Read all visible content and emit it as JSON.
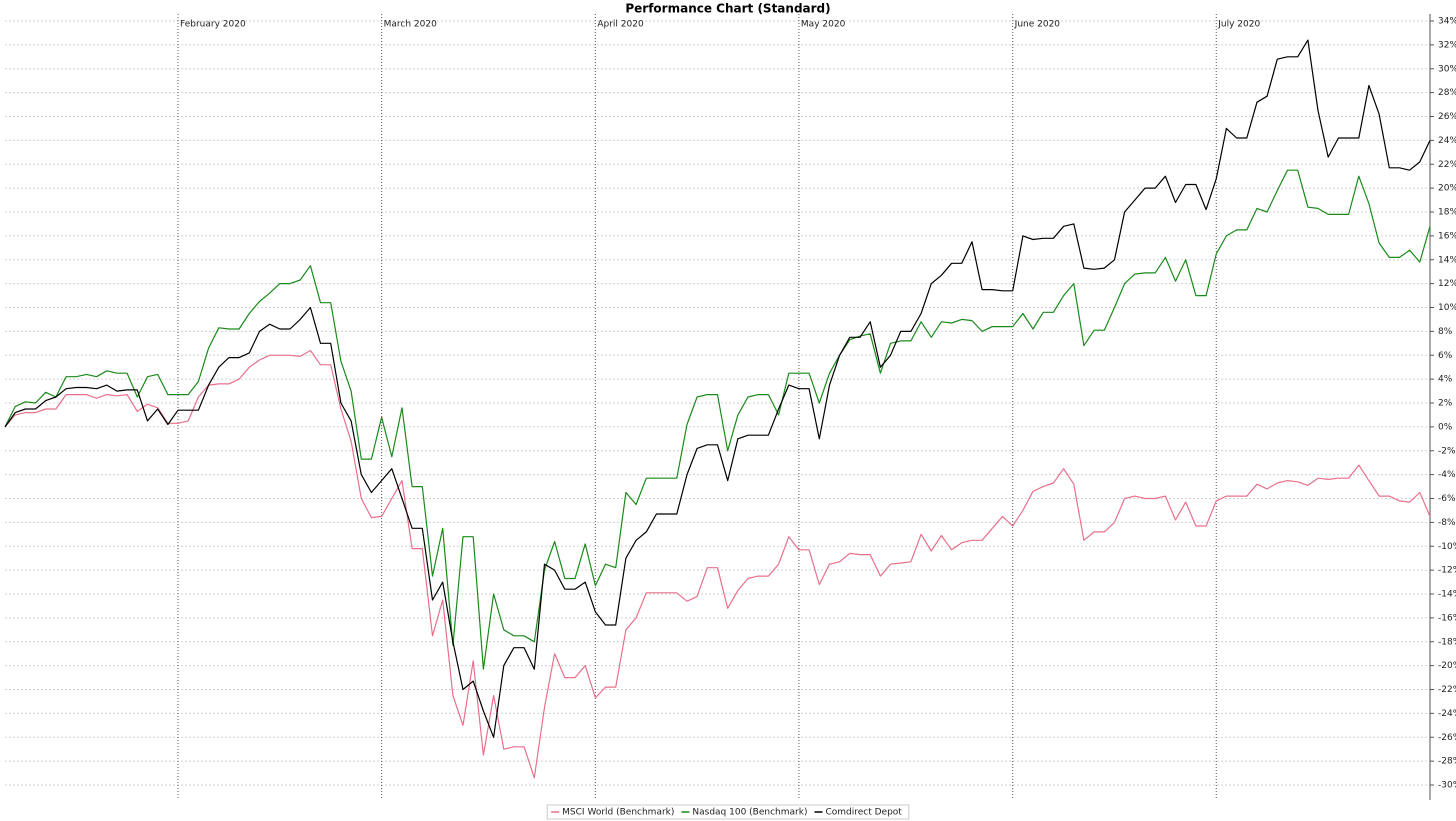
{
  "chart_data": {
    "type": "line",
    "title": "Performance Chart (Standard)",
    "categories": [
      null,
      null,
      null,
      null,
      null,
      null,
      null,
      null,
      null,
      null,
      null,
      null,
      null,
      null,
      null,
      null,
      null,
      "February 2020",
      null,
      null,
      null,
      null,
      null,
      null,
      null,
      null,
      null,
      null,
      null,
      null,
      null,
      null,
      null,
      null,
      null,
      null,
      null,
      "March 2020",
      null,
      null,
      null,
      null,
      null,
      null,
      null,
      null,
      null,
      null,
      null,
      null,
      null,
      null,
      null,
      null,
      null,
      null,
      null,
      null,
      "April 2020",
      null,
      null,
      null,
      null,
      null,
      null,
      null,
      null,
      null,
      null,
      null,
      null,
      null,
      null,
      null,
      null,
      null,
      null,
      null,
      "May 2020",
      null,
      null,
      null,
      null,
      null,
      null,
      null,
      null,
      null,
      null,
      null,
      null,
      null,
      null,
      null,
      null,
      null,
      null,
      null,
      null,
      "June 2020",
      null,
      null,
      null,
      null,
      null,
      null,
      null,
      null,
      null,
      null,
      null,
      null,
      null,
      null,
      null,
      null,
      null,
      null,
      null,
      "July 2020",
      null,
      null,
      null,
      null,
      null,
      null,
      null,
      null,
      null,
      null,
      null,
      null,
      null,
      null,
      null,
      null,
      null,
      null,
      null,
      null,
      null
    ],
    "series": [
      {
        "name": "MSCI World (Benchmark)",
        "color": "#e8708c",
        "values": [
          0,
          1.0,
          1.2,
          1.2,
          1.5,
          1.5,
          2.7,
          2.7,
          2.7,
          2.4,
          2.7,
          2.6,
          2.7,
          1.3,
          1.9,
          1.6,
          0.3,
          0.3,
          0.5,
          2.5,
          3.5,
          3.6,
          3.6,
          4.0,
          5.0,
          5.6,
          6.0,
          6.0,
          6.0,
          5.9,
          6.4,
          5.2,
          5.2,
          1.5,
          -1.2,
          -6,
          -7.6,
          -7.5,
          -6,
          -4.5,
          -10.2,
          -10.2,
          -17.5,
          -14.5,
          -22.5,
          -25,
          -19.6,
          -27.5,
          -22.5,
          -27,
          -26.8,
          -26.8,
          -29.4,
          -23.5,
          -19,
          -21,
          -21,
          -20,
          -22.7,
          -21.8,
          -21.8,
          -17,
          -16,
          -13.9,
          -13.9,
          -13.9,
          -13.9,
          -14.6,
          -14.2,
          -11.8,
          -11.8,
          -15.2,
          -13.7,
          -12.7,
          -12.5,
          -12.5,
          -11.5,
          -9.2,
          -10.3,
          -10.3,
          -13.2,
          -11.5,
          -11.3,
          -10.6,
          -10.7,
          -10.7,
          -12.5,
          -11.5,
          -11.4,
          -11.3,
          -9,
          -10.4,
          -9.1,
          -10.3,
          -9.7,
          -9.5,
          -9.5,
          -8.5,
          -7.5,
          -8.3,
          -7,
          -5.4,
          -5,
          -4.7,
          -3.5,
          -4.8,
          -9.5,
          -8.8,
          -8.8,
          -8,
          -6,
          -5.8,
          -6,
          -6,
          -5.8,
          -7.8,
          -6.3,
          -8.3,
          -8.3,
          -6.2,
          -5.8,
          -5.8,
          -5.8,
          -4.8,
          -5.2,
          -4.7,
          -4.5,
          -4.6,
          -4.9,
          -4.3,
          -4.4,
          -4.3,
          -4.3,
          -3.2,
          -4.5,
          -5.8,
          -5.8,
          -6.2,
          -6.3,
          -5.5,
          -7.5
        ]
      },
      {
        "name": "Nasdaq 100 (Benchmark)",
        "color": "#1a8a1a",
        "values": [
          0,
          1.7,
          2.1,
          2.0,
          2.9,
          2.5,
          4.2,
          4.2,
          4.4,
          4.2,
          4.7,
          4.5,
          4.5,
          2.5,
          4.2,
          4.4,
          2.7,
          2.7,
          2.7,
          3.8,
          6.6,
          8.3,
          8.2,
          8.2,
          9.5,
          10.5,
          11.2,
          12.0,
          12.0,
          12.3,
          13.5,
          10.4,
          10.4,
          5.5,
          3.0,
          -2.7,
          -2.7,
          0.8,
          -2.5,
          1.6,
          -5,
          -5,
          -12.5,
          -8.5,
          -18.3,
          -9.2,
          -9.2,
          -20.3,
          -14,
          -17,
          -17.5,
          -17.5,
          -18,
          -12,
          -9.6,
          -12.7,
          -12.7,
          -9.8,
          -13.3,
          -11.5,
          -11.8,
          -5.5,
          -6.5,
          -4.3,
          -4.3,
          -4.3,
          -4.3,
          0.2,
          2.5,
          2.7,
          2.7,
          -2,
          1,
          2.5,
          2.7,
          2.7,
          1,
          4.5,
          4.5,
          4.5,
          2,
          4.5,
          6,
          7.3,
          7.6,
          7.8,
          4.5,
          7,
          7.2,
          7.2,
          8.8,
          7.5,
          8.8,
          8.7,
          9,
          8.9,
          8,
          8.4,
          8.4,
          8.4,
          9.5,
          8.2,
          9.6,
          9.6,
          11,
          12,
          6.8,
          8.1,
          8.1,
          10,
          12,
          12.8,
          12.9,
          12.9,
          14.2,
          12.2,
          14,
          11,
          11,
          14.5,
          16,
          16.5,
          16.5,
          18.3,
          18,
          19.8,
          21.5,
          21.5,
          18.4,
          18.3,
          17.8,
          17.8,
          17.8,
          21,
          18.7,
          15.4,
          14.2,
          14.2,
          14.8,
          13.8,
          16.8
        ]
      },
      {
        "name": "Comdirect Depot",
        "color": "#000000",
        "values": [
          0,
          1.2,
          1.5,
          1.5,
          2.2,
          2.5,
          3.2,
          3.3,
          3.3,
          3.2,
          3.5,
          3.0,
          3.1,
          3.1,
          0.5,
          1.5,
          0.2,
          1.4,
          1.4,
          1.4,
          3.5,
          5.0,
          5.8,
          5.8,
          6.2,
          8.0,
          8.6,
          8.2,
          8.2,
          9.0,
          10.0,
          7.0,
          7.0,
          2.0,
          0.5,
          -4.0,
          -5.5,
          -4.5,
          -3.5,
          -6.0,
          -8.5,
          -8.5,
          -14.5,
          -13,
          -18,
          -22,
          -21.3,
          -23.8,
          -26,
          -20,
          -18.5,
          -18.5,
          -20.3,
          -11.5,
          -12,
          -13.6,
          -13.6,
          -13,
          -15.5,
          -16.6,
          -16.6,
          -11,
          -9.5,
          -8.8,
          -7.3,
          -7.3,
          -7.3,
          -4,
          -1.8,
          -1.5,
          -1.5,
          -4.5,
          -1,
          -0.7,
          -0.7,
          -0.7,
          1.5,
          3.5,
          3.2,
          3.2,
          -1.0,
          3.5,
          6,
          7.5,
          7.5,
          8.8,
          5.0,
          6.0,
          8.0,
          8.0,
          9.5,
          12,
          12.7,
          13.7,
          13.7,
          15.5,
          11.5,
          11.5,
          11.4,
          11.4,
          16,
          15.7,
          15.8,
          15.8,
          16.8,
          17,
          13.3,
          13.2,
          13.3,
          14,
          18,
          19,
          20,
          20,
          21,
          18.8,
          20.3,
          20.3,
          18.2,
          20.8,
          25,
          24.2,
          24.2,
          27.2,
          27.7,
          30.8,
          31,
          31,
          32.4,
          26.5,
          22.6,
          24.2,
          24.2,
          24.2,
          28.6,
          26.2,
          21.7,
          21.7,
          21.5,
          22.2,
          24
        ]
      }
    ],
    "ylim": [
      -30,
      34
    ],
    "yticks": [
      {
        "value": -30,
        "label": "-30%"
      },
      {
        "value": -28,
        "label": "-28%"
      },
      {
        "value": -26,
        "label": "-26%"
      },
      {
        "value": -24,
        "label": "-24%"
      },
      {
        "value": -22,
        "label": "-22%"
      },
      {
        "value": -20,
        "label": "-20%"
      },
      {
        "value": -18,
        "label": "-18%"
      },
      {
        "value": -16,
        "label": "-16%"
      },
      {
        "value": -14,
        "label": "-14%"
      },
      {
        "value": -12,
        "label": "-12%"
      },
      {
        "value": -10,
        "label": "-10%"
      },
      {
        "value": -8,
        "label": "-8%"
      },
      {
        "value": -6,
        "label": "-6%"
      },
      {
        "value": -4,
        "label": "-4%"
      },
      {
        "value": -2,
        "label": "-2%"
      },
      {
        "value": 0,
        "label": "0%"
      },
      {
        "value": 2,
        "label": "2%"
      },
      {
        "value": 4,
        "label": "4%"
      },
      {
        "value": 6,
        "label": "6%"
      },
      {
        "value": 8,
        "label": "8%"
      },
      {
        "value": 10,
        "label": "10%"
      },
      {
        "value": 12,
        "label": "12%"
      },
      {
        "value": 14,
        "label": "14%"
      },
      {
        "value": 16,
        "label": "16%"
      },
      {
        "value": 18,
        "label": "18%"
      },
      {
        "value": 20,
        "label": "20%"
      },
      {
        "value": 22,
        "label": "22%"
      },
      {
        "value": 24,
        "label": "24%"
      },
      {
        "value": 26,
        "label": "26%"
      },
      {
        "value": 28,
        "label": "28%"
      },
      {
        "value": 30,
        "label": "30%"
      },
      {
        "value": 32,
        "label": "32%"
      },
      {
        "value": 34,
        "label": "34%"
      }
    ],
    "grid": true,
    "y_axis_position": "right",
    "legend": "bottom"
  }
}
